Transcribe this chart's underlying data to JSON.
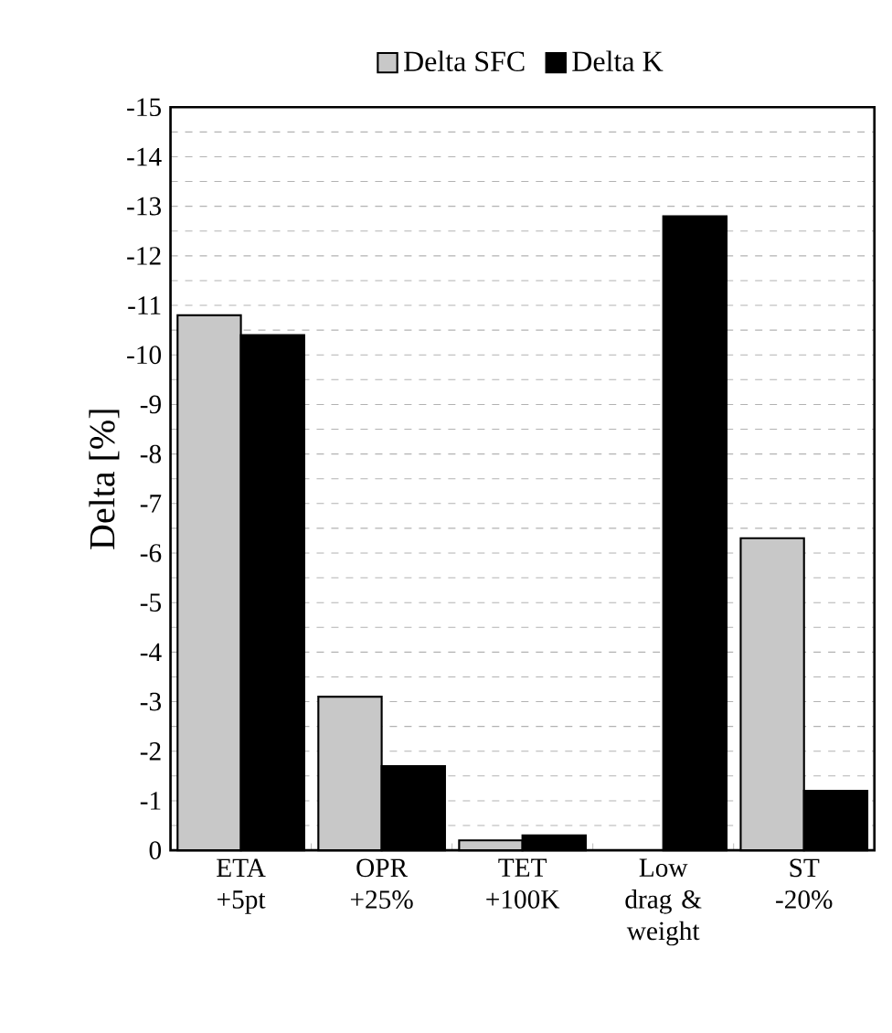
{
  "chart_data": {
    "type": "bar",
    "ylabel": "Delta [%]",
    "categories": [
      "ETA +5pt",
      "OPR +25%",
      "TET +100K",
      "Low drag & weight",
      "ST -20%"
    ],
    "series": [
      {
        "name": "Delta SFC",
        "color": "#c8c8c8",
        "values": [
          -10.8,
          -3.1,
          -0.2,
          null,
          -6.3
        ]
      },
      {
        "name": "Delta K",
        "color": "#000000",
        "values": [
          -10.4,
          -1.7,
          -0.3,
          -12.8,
          -1.2
        ]
      }
    ],
    "ylim": [
      0,
      -15
    ],
    "yticks": [
      0,
      -1,
      -2,
      -3,
      -4,
      -5,
      -6,
      -7,
      -8,
      -9,
      -10,
      -11,
      -12,
      -13,
      -14,
      -15
    ],
    "grid": "y",
    "legend": "top"
  }
}
